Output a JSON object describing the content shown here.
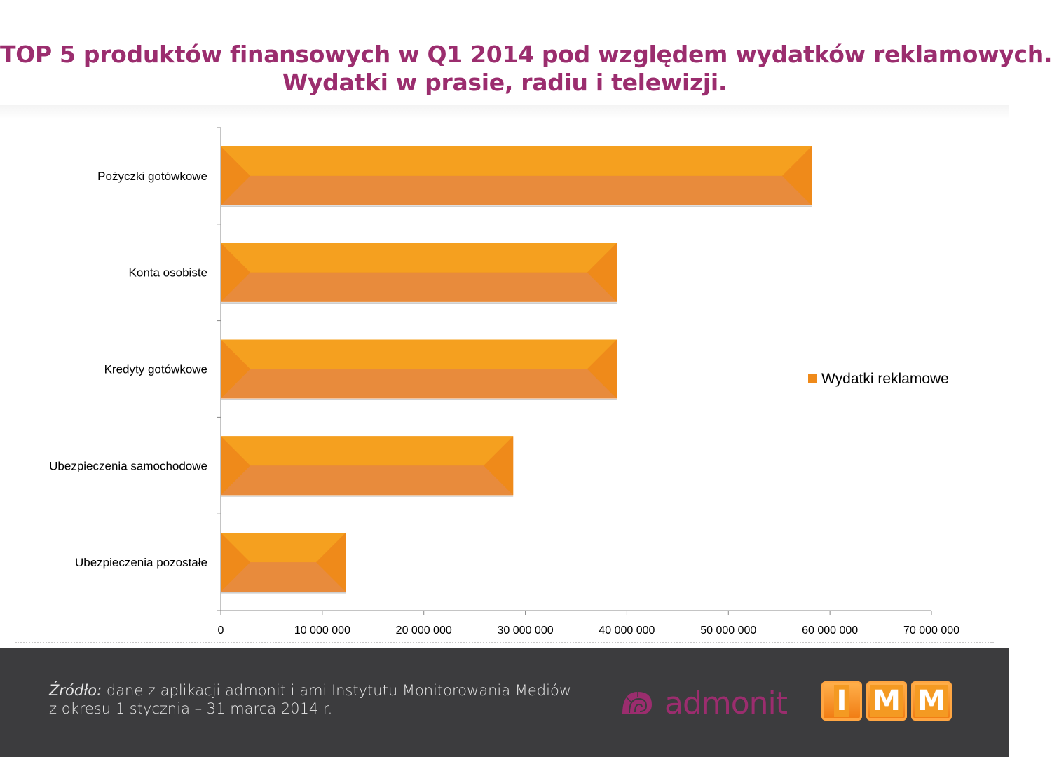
{
  "header": {
    "title_line1": "TOP 5 produktów finansowych w Q1 2014 pod względem wydatków reklamowych.",
    "title_line2": "Wydatki w prasie, radiu i telewizji."
  },
  "chart_data": {
    "type": "bar",
    "orientation": "horizontal",
    "categories": [
      "Pożyczki gotówkowe",
      "Konta osobiste",
      "Kredyty gotówkowe",
      "Ubezpieczenia samochodowe",
      "Ubezpieczenia pozostałe"
    ],
    "series": [
      {
        "name": "Wydatki reklamowe",
        "values": [
          58200000,
          39000000,
          39000000,
          28800000,
          12300000
        ]
      }
    ],
    "xlim": [
      0,
      70000000
    ],
    "xticks": [
      "0",
      "10 000 000",
      "20 000 000",
      "30 000 000",
      "40 000 000",
      "50 000 000",
      "60 000 000",
      "70 000 000"
    ],
    "grid": false,
    "legend_position": "right",
    "colors": {
      "bar_top": "#f5a01f",
      "bar_bottom": "#e88b3c",
      "bar_edge": "#ef8a1a",
      "legend": "#ef8a1a"
    }
  },
  "footer": {
    "source_label": "Źródło:",
    "source_text": " dane z aplikacji admonit i ami Instytutu Monitorowania Mediów",
    "source_line2": "z okresu 1 stycznia – 31 marca 2014 r.",
    "admonit_logo": "admonit",
    "imm_logo": [
      "I",
      "M",
      "M"
    ]
  }
}
